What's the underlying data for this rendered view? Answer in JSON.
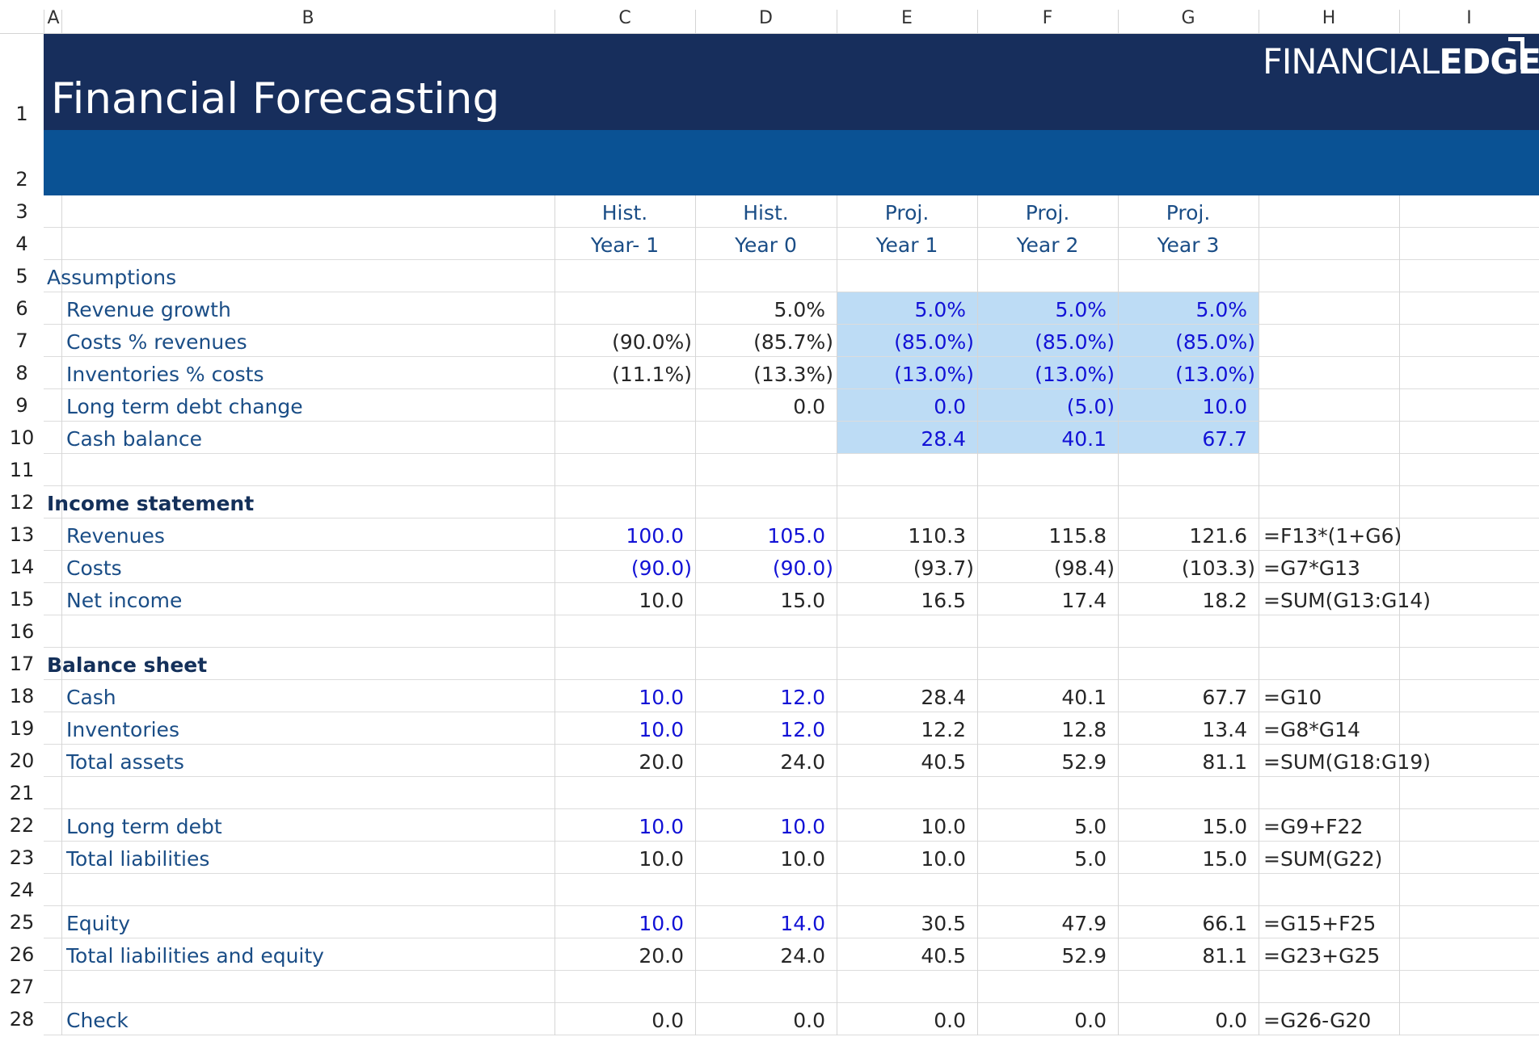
{
  "column_letters": [
    "A",
    "B",
    "C",
    "D",
    "E",
    "F",
    "G",
    "H",
    "I"
  ],
  "row_numbers": [
    "1",
    "2",
    "3",
    "4",
    "5",
    "6",
    "7",
    "8",
    "9",
    "10",
    "11",
    "12",
    "13",
    "14",
    "15",
    "16",
    "17",
    "18",
    "19",
    "20",
    "21",
    "22",
    "23",
    "24",
    "25",
    "26",
    "27",
    "28"
  ],
  "banner": {
    "title": "Financial Forecasting",
    "logo_thin": "FINANCIAL",
    "logo_bold": "EDGE"
  },
  "periods": [
    {
      "type": "Hist.",
      "year": "Year- 1"
    },
    {
      "type": "Hist.",
      "year": "Year 0"
    },
    {
      "type": "Proj.",
      "year": "Year 1"
    },
    {
      "type": "Proj.",
      "year": "Year 2"
    },
    {
      "type": "Proj.",
      "year": "Year 3"
    }
  ],
  "sections": {
    "assumptions": "Assumptions",
    "income_statement": "Income statement",
    "balance_sheet": "Balance sheet"
  },
  "rows": {
    "revenue_growth": {
      "label": "Revenue growth",
      "values": [
        "",
        "5.0%",
        "5.0%",
        "5.0%",
        "5.0%"
      ],
      "formula": ""
    },
    "costs_pct": {
      "label": "Costs % revenues",
      "values": [
        "(90.0%)",
        "(85.7%)",
        "(85.0%)",
        "(85.0%)",
        "(85.0%)"
      ],
      "formula": ""
    },
    "inventories_pct": {
      "label": "Inventories % costs",
      "values": [
        "(11.1%)",
        "(13.3%)",
        "(13.0%)",
        "(13.0%)",
        "(13.0%)"
      ],
      "formula": ""
    },
    "ltd_change": {
      "label": "Long term debt change",
      "values": [
        "",
        "0.0",
        "0.0",
        "(5.0)",
        "10.0"
      ],
      "formula": ""
    },
    "cash_balance": {
      "label": "Cash balance",
      "values": [
        "",
        "",
        "28.4",
        "40.1",
        "67.7"
      ],
      "formula": ""
    },
    "revenues": {
      "label": "Revenues",
      "values": [
        "100.0",
        "105.0",
        "110.3",
        "115.8",
        "121.6"
      ],
      "formula": "=F13*(1+G6)"
    },
    "costs": {
      "label": "Costs",
      "values": [
        "(90.0)",
        "(90.0)",
        "(93.7)",
        "(98.4)",
        "(103.3)"
      ],
      "formula": "=G7*G13"
    },
    "net_income": {
      "label": "Net income",
      "values": [
        "10.0",
        "15.0",
        "16.5",
        "17.4",
        "18.2"
      ],
      "formula": "=SUM(G13:G14)"
    },
    "cash": {
      "label": "Cash",
      "values": [
        "10.0",
        "12.0",
        "28.4",
        "40.1",
        "67.7"
      ],
      "formula": "=G10"
    },
    "inventories": {
      "label": "Inventories",
      "values": [
        "10.0",
        "12.0",
        "12.2",
        "12.8",
        "13.4"
      ],
      "formula": "=G8*G14"
    },
    "total_assets": {
      "label": "Total assets",
      "values": [
        "20.0",
        "24.0",
        "40.5",
        "52.9",
        "81.1"
      ],
      "formula": "=SUM(G18:G19)"
    },
    "long_term_debt": {
      "label": "Long term debt",
      "values": [
        "10.0",
        "10.0",
        "10.0",
        "5.0",
        "15.0"
      ],
      "formula": "=G9+F22"
    },
    "total_liabilities": {
      "label": "Total liabilities",
      "values": [
        "10.0",
        "10.0",
        "10.0",
        "5.0",
        "15.0"
      ],
      "formula": "=SUM(G22)"
    },
    "equity": {
      "label": "Equity",
      "values": [
        "10.0",
        "14.0",
        "30.5",
        "47.9",
        "66.1"
      ],
      "formula": "=G15+F25"
    },
    "total_liab_equity": {
      "label": "Total liabilities and equity",
      "values": [
        "20.0",
        "24.0",
        "40.5",
        "52.9",
        "81.1"
      ],
      "formula": "=G23+G25"
    },
    "check": {
      "label": "Check",
      "values": [
        "0.0",
        "0.0",
        "0.0",
        "0.0",
        "0.0"
      ],
      "formula": "=G26-G20"
    }
  },
  "colors": {
    "banner_dark": "#172e5c",
    "banner_mid": "#0a5294",
    "input_highlight": "#bddcf5",
    "input_font": "#1212d6",
    "label_font": "#1a4d86"
  }
}
